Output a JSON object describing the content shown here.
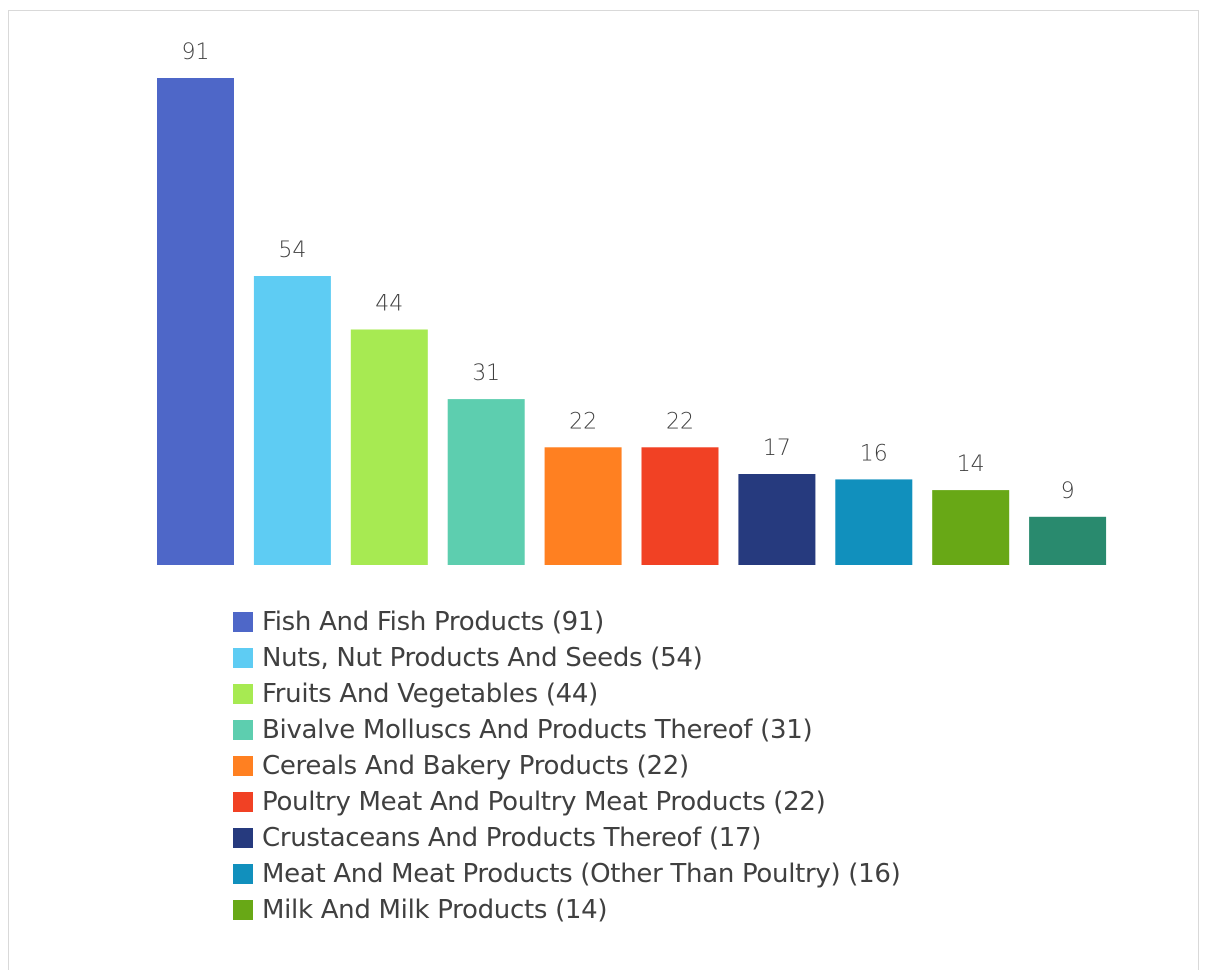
{
  "chart_data": {
    "type": "bar",
    "categories": [
      "Fish And Fish Products (91)",
      "Nuts, Nut Products And Seeds (54)",
      "Fruits And Vegetables (44)",
      "Bivalve Molluscs And Products Thereof (31)",
      "Cereals And Bakery Products (22)",
      "Poultry Meat And Poultry Meat Products (22)",
      "Crustaceans And Products Thereof (17)",
      "Meat And Meat Products (Other Than Poultry) (16)",
      "Milk And Milk Products (14)",
      ""
    ],
    "values": [
      91,
      54,
      44,
      31,
      22,
      22,
      17,
      16,
      14,
      9
    ],
    "data_labels": [
      "91",
      "54",
      "44",
      "31",
      "22",
      "22",
      "17",
      "16",
      "14",
      "9"
    ],
    "colors": [
      "#4e67c8",
      "#5eccf3",
      "#a7ea52",
      "#5dceaf",
      "#ff8021",
      "#f14124",
      "#263a7e",
      "#1190bd",
      "#68a816",
      "#298a6e"
    ],
    "legend_position": "bottom",
    "grid": false,
    "ylim": [
      0,
      91
    ],
    "title": "",
    "xlabel": "",
    "ylabel": ""
  }
}
